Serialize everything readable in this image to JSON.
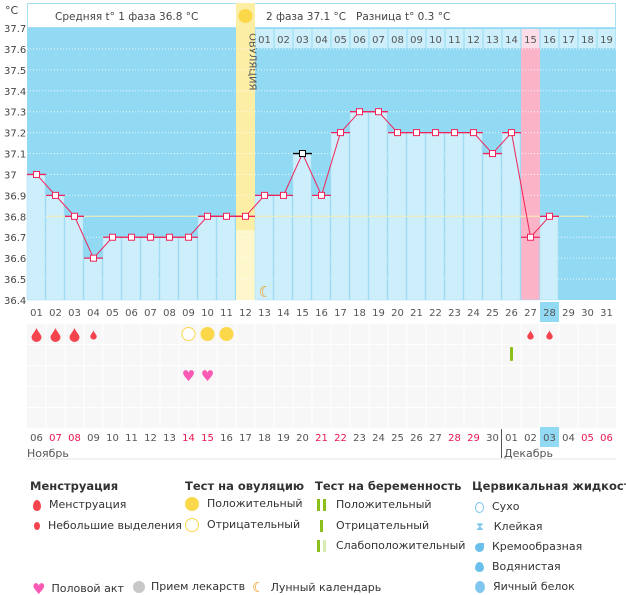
{
  "unit_label": "°C",
  "header": {
    "phase1": "Средняя t° 1 фаза 36.8 °C",
    "phase2": "2 фаза 37.1 °C",
    "difference": "Разница t° 0.3 °C",
    "ovulation_label": "ОВУЛЯЦИЯ"
  },
  "colors": {
    "background": "#92d9f3",
    "bar": "#cdeefb",
    "line": "#f0245a",
    "ovulation": "#fdeea6",
    "pink": "#fbb3c8",
    "cover": "#f4eeb0"
  },
  "chart_data": {
    "type": "line",
    "ylim": [
      36.4,
      37.7
    ],
    "yticks": [
      "37.7",
      "37.6",
      "37.5",
      "37.4",
      "37.3",
      "37.2",
      "37.1",
      "37",
      "36.9",
      "36.8",
      "36.7",
      "36.6",
      "36.5",
      "36.4"
    ],
    "cycle_days": [
      "01",
      "02",
      "03",
      "04",
      "05",
      "06",
      "07",
      "08",
      "09",
      "10",
      "11",
      "12",
      "13",
      "14",
      "15",
      "16",
      "17",
      "18",
      "19",
      "20",
      "21",
      "22",
      "23",
      "24",
      "25",
      "26",
      "27",
      "28",
      "29",
      "30",
      "31"
    ],
    "temperatures": [
      37.0,
      36.9,
      36.8,
      36.6,
      36.7,
      36.7,
      36.7,
      36.7,
      36.7,
      36.8,
      36.8,
      36.8,
      36.9,
      36.9,
      37.1,
      36.9,
      37.2,
      37.3,
      37.3,
      37.2,
      37.2,
      37.2,
      37.2,
      37.2,
      37.1,
      37.2,
      36.7,
      36.8
    ],
    "cover_line": 36.8,
    "ovulation_day": 12,
    "current_day": 28,
    "highlight_day": 27,
    "luteal_days": [
      "01",
      "02",
      "03",
      "04",
      "05",
      "06",
      "07",
      "08",
      "09",
      "10",
      "11",
      "12",
      "13",
      "14",
      "15",
      "16",
      "17",
      "18",
      "19"
    ],
    "calendar_dates": [
      "06",
      "07",
      "08",
      "09",
      "10",
      "11",
      "12",
      "13",
      "14",
      "15",
      "16",
      "17",
      "18",
      "19",
      "20",
      "21",
      "22",
      "23",
      "24",
      "25",
      "26",
      "27",
      "28",
      "29",
      "30",
      "01",
      "02",
      "03",
      "04",
      "05",
      "06"
    ],
    "weekend_idx": [
      1,
      2,
      8,
      9,
      15,
      16,
      22,
      23,
      29,
      30
    ],
    "months": [
      "Ноябрь",
      "Декабрь"
    ],
    "menstruation": {
      "1": "big",
      "2": "big",
      "3": "big",
      "4": "small",
      "27": "small",
      "28": "small"
    },
    "ovulation_tests": {
      "9": "negative",
      "10": "positive",
      "11": "positive"
    },
    "pregnancy_tests": {
      "26": "negative"
    },
    "intercourse": [
      9,
      10
    ],
    "moon_day": 13
  },
  "legend": {
    "menstruation": {
      "title": "Менструация",
      "items": [
        "Менструация",
        "Небольшие выделения"
      ]
    },
    "ovulation_test": {
      "title": "Тест на овуляцию",
      "items": [
        "Положительный",
        "Отрицательный"
      ]
    },
    "pregnancy_test": {
      "title": "Тест на беременность",
      "items": [
        "Положительный",
        "Отрицательный",
        "Слабоположительный"
      ]
    },
    "cervical": {
      "title": "Цервикальная жидкость",
      "items": [
        "Сухо",
        "Клейкая",
        "Кремообразная",
        "Водянистая",
        "Яичный белок"
      ]
    },
    "other": [
      "Половой акт",
      "Прием лекарств",
      "Лунный календарь"
    ]
  }
}
